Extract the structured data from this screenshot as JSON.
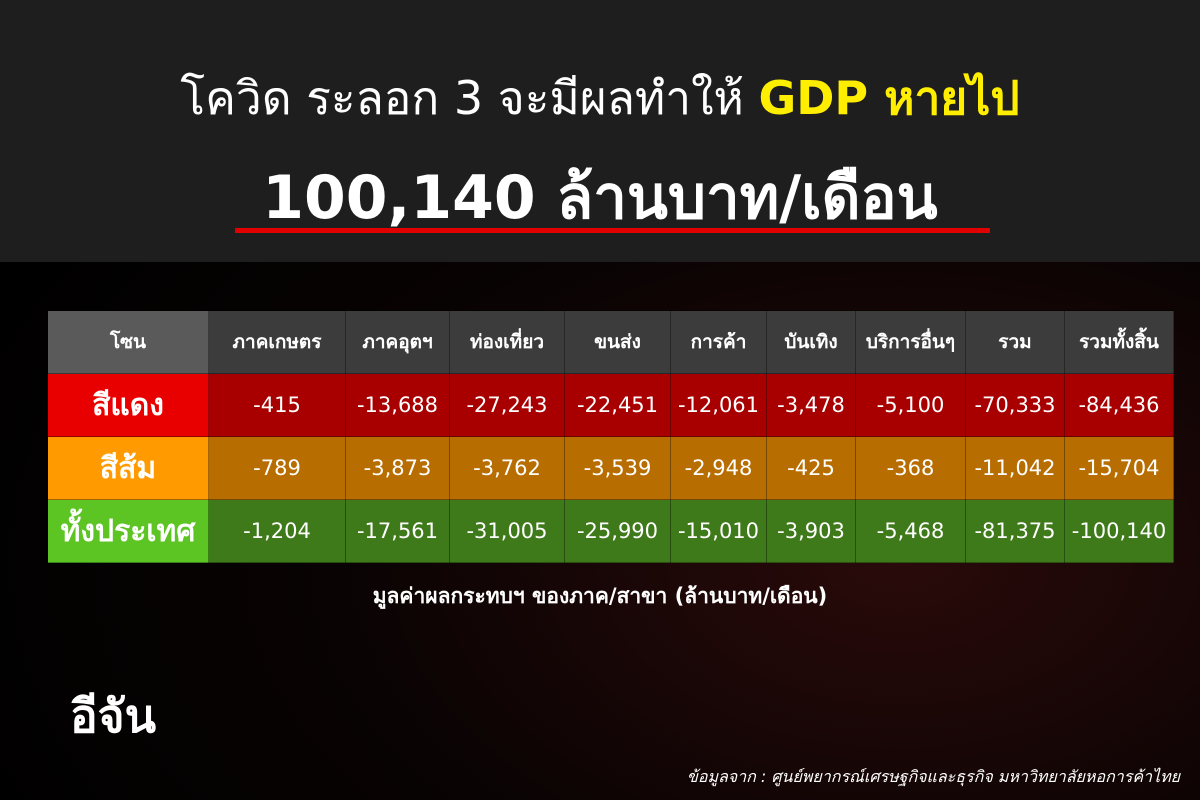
{
  "header": {
    "title": [
      "โควิด ระลอก 3 จะมีผลทำให้",
      "GDP หายไป"
    ],
    "headline": "100,140  ล้านบาท/เดือน"
  },
  "table": {
    "header": [
      "โซน",
      "ภาคเกษตร",
      "ภาคอุตฯ",
      "ท่องเที่ยว",
      "ขนส่ง",
      "การค้า",
      "บันเทิง",
      "บริการอื่นๆ",
      "รวม",
      "รวมทั้งสิ้น"
    ],
    "rows": [
      [
        "สีแดง",
        "-415",
        "-13,688",
        "-27,243",
        "-22,451",
        "-12,061",
        "-3,478",
        "-5,100",
        "-70,333",
        "-84,436"
      ],
      [
        "สีส้ม",
        "-789",
        "-3,873",
        "-3,762",
        "-3,539",
        "-2,948",
        "-425",
        "-368",
        "-11,042",
        "-15,704"
      ],
      [
        "ทั้งประเทศ",
        "-1,204",
        "-17,561",
        "-31,005",
        "-25,990",
        "-15,010",
        "-3,903",
        "-5,468",
        "-81,375",
        "-100,140"
      ]
    ]
  },
  "caption": "มูลค่าผลกระทบฯ ของภาค/สาขา (ล้านบาท/เดือน)",
  "logo": "อีจัน",
  "source": "ข้อมูลจาก : ศูนย์พยากรณ์เศรษฐกิจและธุรกิจ มหาวิทยาลัยหอการค้าไทย"
}
